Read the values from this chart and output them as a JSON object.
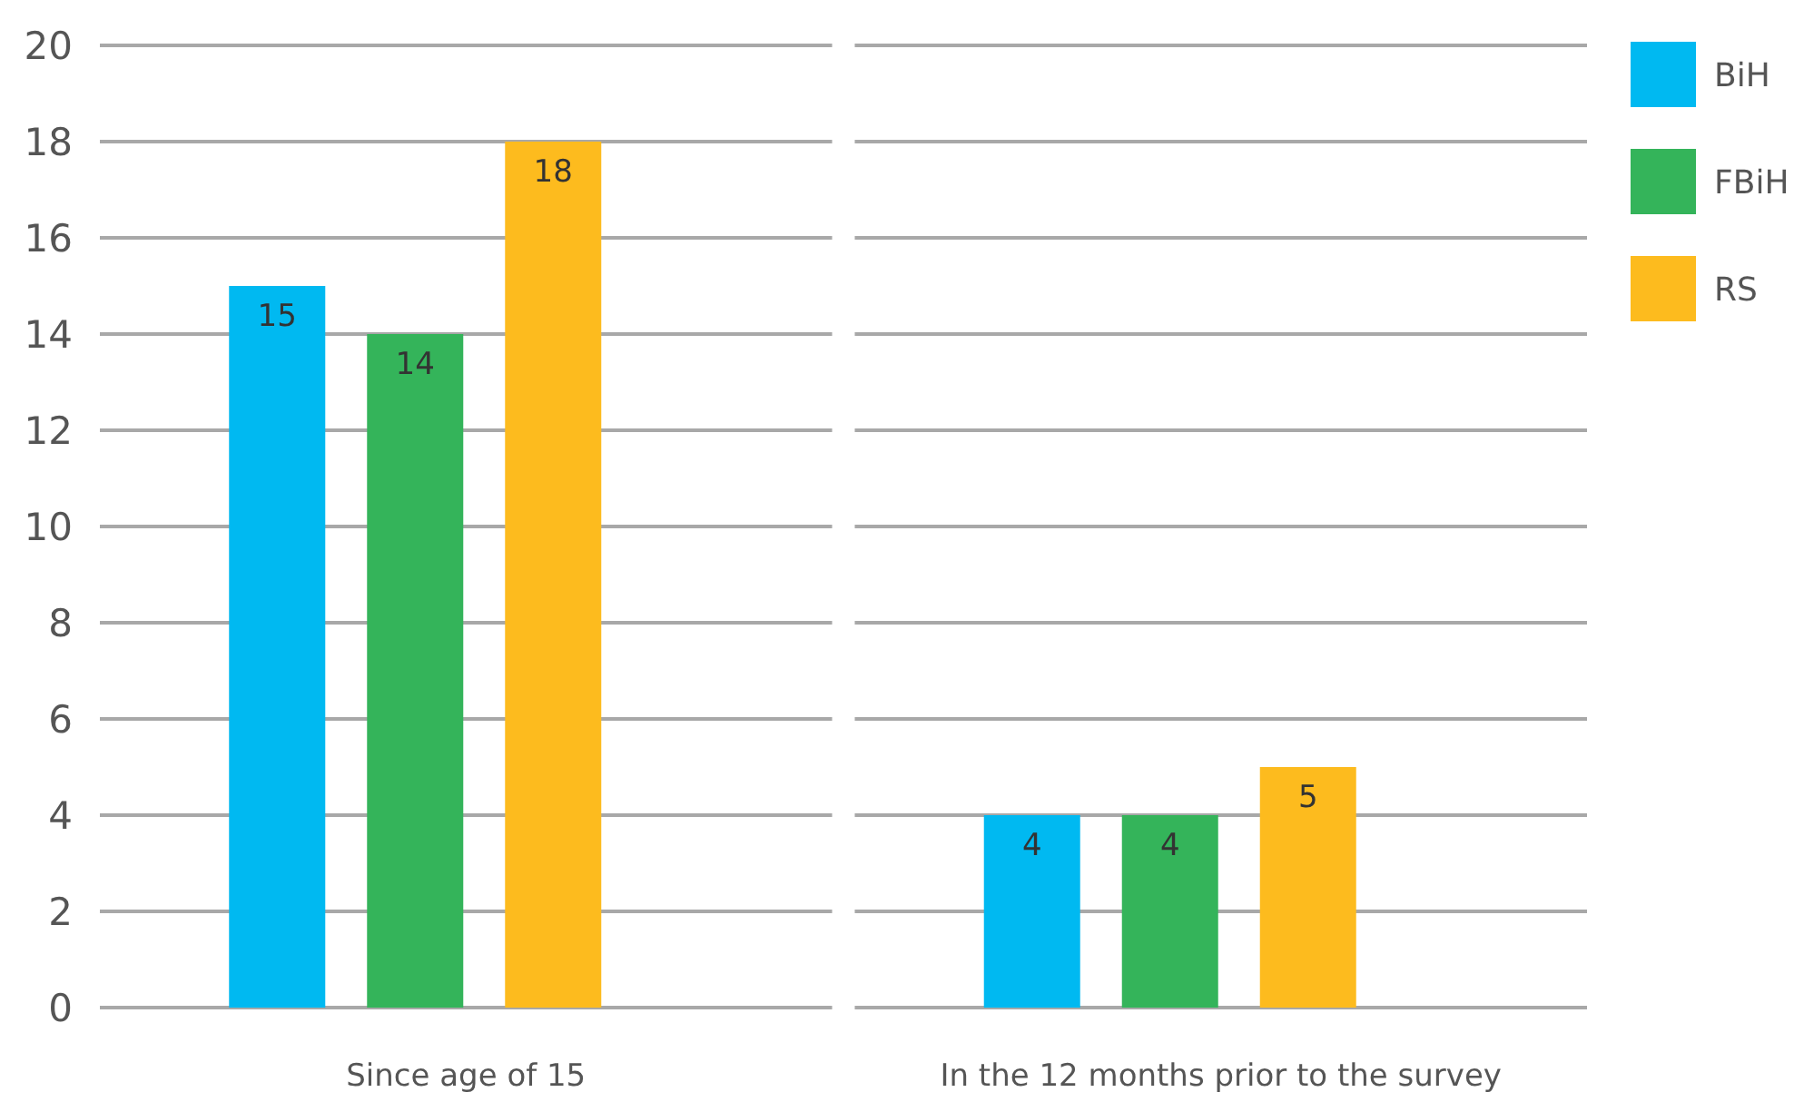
{
  "chart_data": {
    "type": "bar",
    "categories": [
      "Since age of 15",
      "In the 12 months prior to the survey"
    ],
    "series": [
      {
        "name": "BiH",
        "color": "#00b9f1",
        "values": [
          15,
          4
        ]
      },
      {
        "name": "FBiH",
        "color": "#34b45a",
        "values": [
          14,
          4
        ]
      },
      {
        "name": "RS",
        "color": "#fdbb1e",
        "values": [
          18,
          5
        ]
      }
    ],
    "ylim": [
      0,
      20
    ],
    "yticks": [
      0,
      2,
      4,
      6,
      8,
      10,
      12,
      14,
      16,
      18,
      20
    ],
    "grid": "y",
    "legend": "top right",
    "data_labels": true
  }
}
